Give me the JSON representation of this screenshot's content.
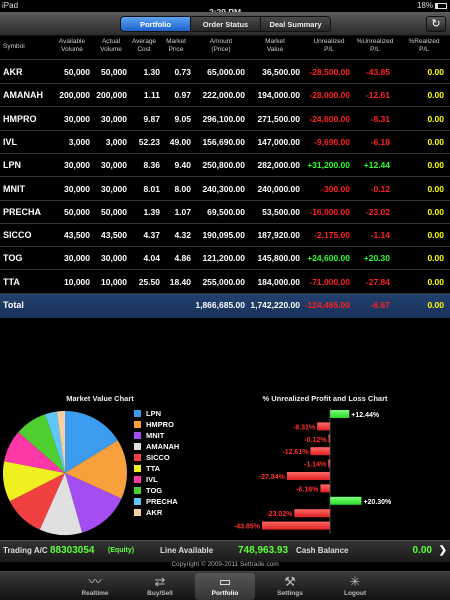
{
  "status_bar": {
    "device": "iPad",
    "time": "2:29 PM",
    "battery": "18%"
  },
  "segments": [
    {
      "label": "Portfolio",
      "active": true
    },
    {
      "label": "Order Status",
      "active": false
    },
    {
      "label": "Deal Summary",
      "active": false
    }
  ],
  "refresh_icon": "refresh-icon",
  "columns": {
    "symbol": "Symbol",
    "available": [
      "Available",
      "Volume"
    ],
    "actual": [
      "Actual",
      "Volume"
    ],
    "average": [
      "Average",
      "Cost"
    ],
    "market_price": [
      "Market",
      "Price"
    ],
    "amount": [
      "Amount",
      "(Price)"
    ],
    "market_value": [
      "Market",
      "Value"
    ],
    "unrealized_pl": [
      "Unrealized",
      "P/L"
    ],
    "pct_unrealized": [
      "%Unrealized",
      "P/L"
    ],
    "pct_realized": [
      "%Realized",
      "P/L"
    ]
  },
  "rows": [
    {
      "symbol": "AKR",
      "available": "50,000",
      "actual": "50,000",
      "avg": "1.30",
      "mkt": "0.73",
      "amount": "65,000.00",
      "value": "36,500.00",
      "upl": "-28,500.00",
      "pupl": "-43.85",
      "prl": "0.00"
    },
    {
      "symbol": "AMANAH",
      "available": "200,000",
      "actual": "200,000",
      "avg": "1.11",
      "mkt": "0.97",
      "amount": "222,000.00",
      "value": "194,000.00",
      "upl": "-28,000.00",
      "pupl": "-12.61",
      "prl": "0.00"
    },
    {
      "symbol": "HMPRO",
      "available": "30,000",
      "actual": "30,000",
      "avg": "9.87",
      "mkt": "9.05",
      "amount": "296,100.00",
      "value": "271,500.00",
      "upl": "-24,600.00",
      "pupl": "-8.31",
      "prl": "0.00"
    },
    {
      "symbol": "IVL",
      "available": "3,000",
      "actual": "3,000",
      "avg": "52.23",
      "mkt": "49.00",
      "amount": "156,690.00",
      "value": "147,000.00",
      "upl": "-9,690.00",
      "pupl": "-6.18",
      "prl": "0.00"
    },
    {
      "symbol": "LPN",
      "available": "30,000",
      "actual": "30,000",
      "avg": "8.36",
      "mkt": "9.40",
      "amount": "250,800.00",
      "value": "282,000.00",
      "upl": "+31,200.00",
      "pupl": "+12.44",
      "prl": "0.00"
    },
    {
      "symbol": "MNIT",
      "available": "30,000",
      "actual": "30,000",
      "avg": "8.01",
      "mkt": "8.00",
      "amount": "240,300.00",
      "value": "240,000.00",
      "upl": "-300.00",
      "pupl": "-0.12",
      "prl": "0.00"
    },
    {
      "symbol": "PRECHA",
      "available": "50,000",
      "actual": "50,000",
      "avg": "1.39",
      "mkt": "1.07",
      "amount": "69,500.00",
      "value": "53,500.00",
      "upl": "-16,000.00",
      "pupl": "-23.02",
      "prl": "0.00"
    },
    {
      "symbol": "SICCO",
      "available": "43,500",
      "actual": "43,500",
      "avg": "4.37",
      "mkt": "4.32",
      "amount": "190,095.00",
      "value": "187,920.00",
      "upl": "-2,175.00",
      "pupl": "-1.14",
      "prl": "0.00"
    },
    {
      "symbol": "TOG",
      "available": "30,000",
      "actual": "30,000",
      "avg": "4.04",
      "mkt": "4.86",
      "amount": "121,200.00",
      "value": "145,800.00",
      "upl": "+24,600.00",
      "pupl": "+20.30",
      "prl": "0.00"
    },
    {
      "symbol": "TTA",
      "available": "10,000",
      "actual": "10,000",
      "avg": "25.50",
      "mkt": "18.40",
      "amount": "255,000.00",
      "value": "184,000.00",
      "upl": "-71,000.00",
      "pupl": "-27.84",
      "prl": "0.00"
    }
  ],
  "total": {
    "label": "Total",
    "amount": "1,866,685.00",
    "value": "1,742,220.00",
    "upl": "-124,465.00",
    "pupl": "-6.67",
    "prl": "0.00"
  },
  "chart_data": [
    {
      "type": "pie",
      "title": "Market Value Chart",
      "categories": [
        "LPN",
        "HMPRO",
        "MNIT",
        "AMANAH",
        "SICCO",
        "TTA",
        "IVL",
        "TOG",
        "PRECHA",
        "AKR"
      ],
      "values": [
        282000,
        271500,
        240000,
        194000,
        187920,
        184000,
        147000,
        145800,
        53500,
        36500
      ],
      "colors": [
        "#3b9cf0",
        "#f7a03c",
        "#a44ef2",
        "#e0e0e0",
        "#f04040",
        "#f0f020",
        "#ff38a8",
        "#50d030",
        "#5ec8f8",
        "#f8cfa0"
      ]
    },
    {
      "type": "bar",
      "title": "% Unrealized Profit and Loss Chart",
      "categories": [
        "LPN",
        "HMPRO",
        "MNIT",
        "AMANAH",
        "SICCO",
        "TTA",
        "IVL",
        "TOG",
        "PRECHA",
        "AKR"
      ],
      "values": [
        12.44,
        -8.31,
        -0.12,
        -12.61,
        -1.14,
        -27.84,
        -6.18,
        20.3,
        -23.02,
        -43.85
      ],
      "labels": [
        "+12.44%",
        "-8.31%",
        "-0.12%",
        "-12.61%",
        "-1.14%",
        "-27.84%",
        "-6.18%",
        "+20.30%",
        "-23.02%",
        "-43.85%"
      ],
      "positive_color": "#28d828",
      "negative_color": "#e02020"
    }
  ],
  "bottom": {
    "trading_label": "Trading A/C",
    "account": "88303054",
    "account_type": "(Equity)",
    "line_label": "Line Available",
    "line_value": "748,963.93",
    "cash_label": "Cash Balance",
    "cash_value": "0.00"
  },
  "copyright": "Copyright © 2009-2011 Settrade.com",
  "tabs": [
    {
      "label": "Realtime",
      "icon": "chart-line-icon",
      "glyph": "〰",
      "active": false
    },
    {
      "label": "Buy/Sell",
      "icon": "buy-sell-icon",
      "glyph": "⇄",
      "active": false
    },
    {
      "label": "Portfolio",
      "icon": "folder-icon",
      "glyph": "▭",
      "active": true
    },
    {
      "label": "Settings",
      "icon": "wrench-icon",
      "glyph": "⚒",
      "active": false
    },
    {
      "label": "Logout",
      "icon": "logout-icon",
      "glyph": "✳",
      "active": false
    }
  ]
}
